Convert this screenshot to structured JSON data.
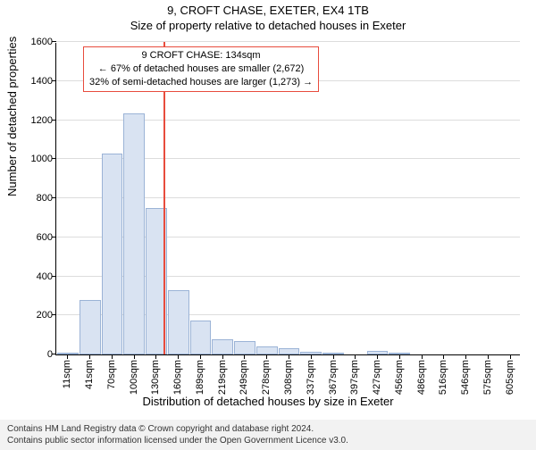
{
  "title": "9, CROFT CHASE, EXETER, EX4 1TB",
  "subtitle": "Size of property relative to detached houses in Exeter",
  "chart": {
    "type": "histogram",
    "ylabel": "Number of detached properties",
    "xlabel": "Distribution of detached houses by size in Exeter",
    "ylim": [
      0,
      1600
    ],
    "ytick_step": 200,
    "yticks": [
      0,
      200,
      400,
      600,
      800,
      1000,
      1200,
      1400,
      1600
    ],
    "xticks": [
      "11sqm",
      "41sqm",
      "70sqm",
      "100sqm",
      "130sqm",
      "160sqm",
      "189sqm",
      "219sqm",
      "249sqm",
      "278sqm",
      "308sqm",
      "337sqm",
      "367sqm",
      "397sqm",
      "427sqm",
      "456sqm",
      "486sqm",
      "516sqm",
      "546sqm",
      "575sqm",
      "605sqm"
    ],
    "bar_values": [
      2,
      280,
      1030,
      1235,
      750,
      330,
      175,
      80,
      70,
      40,
      30,
      15,
      10,
      0,
      20,
      5,
      0,
      0,
      0,
      0,
      0
    ],
    "bar_fill": "#d9e3f2",
    "bar_edge": "#9bb3d6",
    "grid_color": "#dddddd",
    "background_color": "#ffffff",
    "reference_line": {
      "value_sqm": 134,
      "color": "#e84c3d",
      "width": 2
    },
    "annotation": {
      "line1": "9 CROFT CHASE: 134sqm",
      "line2": "← 67% of detached houses are smaller (2,672)",
      "line3": "32% of semi-detached houses are larger (1,273) →",
      "border_color": "#e84c3d"
    },
    "label_fontsize": 13,
    "tick_fontsize": 11
  },
  "footer": {
    "line1": "Contains HM Land Registry data © Crown copyright and database right 2024.",
    "line2": "Contains public sector information licensed under the Open Government Licence v3.0."
  }
}
